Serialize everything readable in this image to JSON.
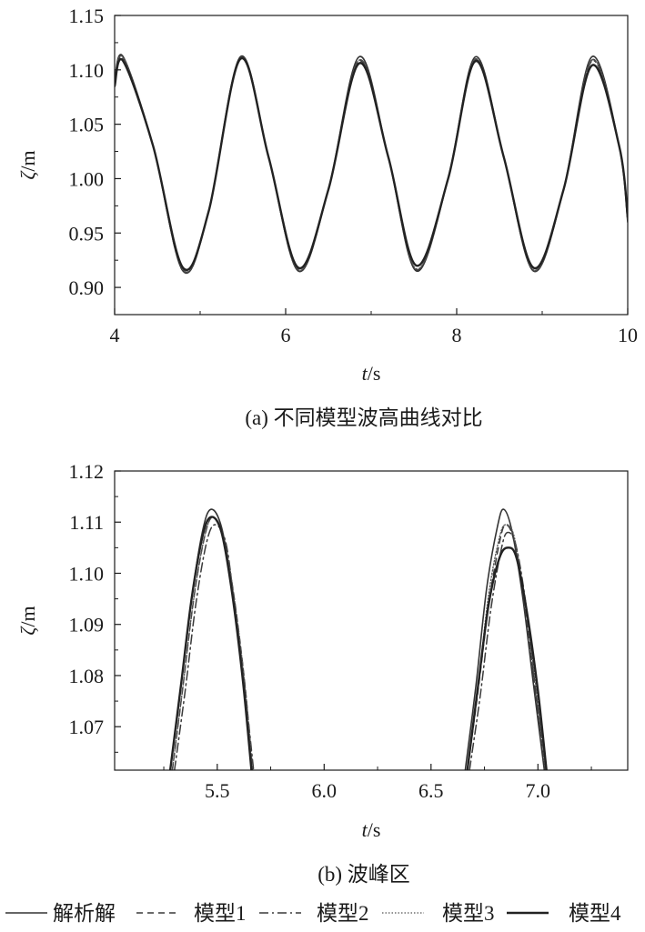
{
  "chart_data": [
    {
      "type": "line",
      "caption": "(a) 不同模型波高曲线对比",
      "xlabel_var": "t",
      "xlabel_unit": "/s",
      "ylabel_var": "ζ",
      "ylabel_unit": "/m",
      "xlim": [
        4,
        10
      ],
      "ylim": [
        0.875,
        1.15
      ],
      "xticks": [
        4,
        6,
        8,
        10
      ],
      "xtick_labels": [
        "4",
        "6",
        "8",
        "10"
      ],
      "yticks": [
        0.9,
        0.95,
        1.0,
        1.05,
        1.1,
        1.15
      ],
      "ytick_labels": [
        "0.90",
        "0.95",
        "1.00",
        "1.05",
        "1.10",
        "1.15"
      ],
      "grid": false,
      "series": [
        {
          "name": "解析解",
          "style": "solid",
          "x": [
            4.0,
            4.1,
            4.45,
            4.8,
            5.1,
            5.47,
            5.8,
            6.15,
            6.5,
            6.86,
            7.2,
            7.53,
            7.9,
            8.22,
            8.55,
            8.9,
            9.25,
            9.58,
            9.9,
            10.0
          ],
          "y": [
            1.09,
            1.112,
            1.03,
            0.915,
            0.97,
            1.112,
            1.02,
            0.915,
            0.99,
            1.112,
            1.02,
            0.915,
            1.0,
            1.112,
            1.02,
            0.915,
            0.99,
            1.112,
            1.03,
            0.96
          ]
        },
        {
          "name": "模型1",
          "style": "dash",
          "x": [
            4.0,
            4.1,
            4.45,
            4.8,
            5.1,
            5.47,
            5.8,
            6.15,
            6.5,
            6.86,
            7.2,
            7.53,
            7.9,
            8.22,
            8.55,
            8.9,
            9.25,
            9.58,
            9.9,
            10.0
          ],
          "y": [
            1.088,
            1.111,
            1.03,
            0.916,
            0.97,
            1.111,
            1.02,
            0.916,
            0.99,
            1.109,
            1.02,
            0.916,
            1.0,
            1.11,
            1.02,
            0.916,
            0.99,
            1.109,
            1.03,
            0.962
          ]
        },
        {
          "name": "模型2",
          "style": "dashdot",
          "x": [
            4.0,
            4.1,
            4.45,
            4.8,
            5.1,
            5.47,
            5.8,
            6.15,
            6.5,
            6.86,
            7.2,
            7.53,
            7.9,
            8.22,
            8.55,
            8.9,
            9.25,
            9.58,
            9.9,
            10.0
          ],
          "y": [
            1.087,
            1.11,
            1.03,
            0.915,
            0.97,
            1.11,
            1.02,
            0.915,
            0.99,
            1.108,
            1.02,
            0.916,
            1.0,
            1.109,
            1.02,
            0.915,
            0.99,
            1.108,
            1.03,
            0.962
          ]
        },
        {
          "name": "模型3",
          "style": "dot",
          "x": [
            4.0,
            4.1,
            4.45,
            4.8,
            5.1,
            5.47,
            5.8,
            6.15,
            6.5,
            6.86,
            7.2,
            7.53,
            7.9,
            8.22,
            8.55,
            8.9,
            9.25,
            9.58,
            9.9,
            10.0
          ],
          "y": [
            1.088,
            1.111,
            1.03,
            0.916,
            0.97,
            1.111,
            1.02,
            0.916,
            0.99,
            1.109,
            1.02,
            0.917,
            1.0,
            1.11,
            1.02,
            0.916,
            0.99,
            1.109,
            1.03,
            0.962
          ]
        },
        {
          "name": "模型4",
          "style": "solid-thick",
          "x": [
            4.0,
            4.1,
            4.45,
            4.8,
            5.1,
            5.47,
            5.8,
            6.15,
            6.5,
            6.86,
            7.2,
            7.53,
            7.9,
            8.22,
            8.55,
            8.9,
            9.25,
            9.58,
            9.9,
            10.0
          ],
          "y": [
            1.085,
            1.108,
            1.03,
            0.918,
            0.97,
            1.11,
            1.02,
            0.918,
            0.99,
            1.106,
            1.02,
            0.92,
            1.0,
            1.108,
            1.02,
            0.918,
            0.99,
            1.104,
            1.03,
            0.965
          ]
        }
      ]
    },
    {
      "type": "line",
      "caption": "(b) 波峰区",
      "xlabel_var": "t",
      "xlabel_unit": "/s",
      "ylabel_var": "ζ",
      "ylabel_unit": "/m",
      "xlim": [
        5.02,
        7.42
      ],
      "ylim": [
        1.0615,
        1.12
      ],
      "xticks": [
        5.5,
        6.0,
        6.5,
        7.0
      ],
      "xtick_labels": [
        "5.5",
        "6.0",
        "6.5",
        "7.0"
      ],
      "yticks": [
        1.07,
        1.08,
        1.09,
        1.1,
        1.11,
        1.12
      ],
      "ytick_labels": [
        "1.07",
        "1.08",
        "1.09",
        "1.10",
        "1.11",
        "1.12"
      ],
      "grid": false,
      "series": [
        {
          "name": "解析解",
          "style": "solid",
          "x": [
            5.28,
            5.33,
            5.38,
            5.43,
            5.47,
            5.52,
            5.57,
            5.62,
            5.66,
            6.66,
            6.71,
            6.76,
            6.81,
            6.84,
            6.88,
            6.93,
            6.98,
            7.03
          ],
          "y": [
            1.0615,
            1.078,
            1.095,
            1.108,
            1.1125,
            1.109,
            1.097,
            1.08,
            1.0615,
            1.0615,
            1.078,
            1.097,
            1.109,
            1.1125,
            1.108,
            1.095,
            1.078,
            1.0615
          ]
        },
        {
          "name": "模型1",
          "style": "dash",
          "x": [
            5.29,
            5.34,
            5.39,
            5.44,
            5.48,
            5.53,
            5.58,
            5.63,
            5.665,
            6.67,
            6.72,
            6.77,
            6.82,
            6.85,
            6.89,
            6.94,
            6.99,
            7.035
          ],
          "y": [
            1.0615,
            1.078,
            1.095,
            1.107,
            1.111,
            1.107,
            1.095,
            1.078,
            1.0615,
            1.0615,
            1.077,
            1.094,
            1.106,
            1.1095,
            1.106,
            1.093,
            1.077,
            1.0615
          ]
        },
        {
          "name": "模型2",
          "style": "dashdot",
          "x": [
            5.3,
            5.35,
            5.4,
            5.45,
            5.49,
            5.54,
            5.58,
            5.63,
            5.67,
            6.68,
            6.73,
            6.78,
            6.83,
            6.86,
            6.9,
            6.95,
            6.99,
            7.04
          ],
          "y": [
            1.0615,
            1.077,
            1.094,
            1.106,
            1.1095,
            1.106,
            1.094,
            1.077,
            1.0615,
            1.0615,
            1.076,
            1.093,
            1.105,
            1.108,
            1.105,
            1.092,
            1.076,
            1.0615
          ]
        },
        {
          "name": "模型3",
          "style": "dot",
          "x": [
            5.29,
            5.34,
            5.39,
            5.44,
            5.48,
            5.53,
            5.58,
            5.63,
            5.665,
            6.67,
            6.72,
            6.77,
            6.82,
            6.85,
            6.89,
            6.94,
            6.99,
            7.035
          ],
          "y": [
            1.0615,
            1.078,
            1.095,
            1.107,
            1.111,
            1.107,
            1.095,
            1.078,
            1.0615,
            1.0615,
            1.078,
            1.096,
            1.107,
            1.1095,
            1.107,
            1.094,
            1.078,
            1.0615
          ]
        },
        {
          "name": "模型4",
          "style": "solid-thick",
          "x": [
            5.28,
            5.33,
            5.38,
            5.43,
            5.47,
            5.52,
            5.57,
            5.62,
            5.66,
            6.67,
            6.72,
            6.77,
            6.82,
            6.86,
            6.9,
            6.95,
            7.0,
            7.04
          ],
          "y": [
            1.0615,
            1.078,
            1.095,
            1.107,
            1.111,
            1.108,
            1.096,
            1.079,
            1.0615,
            1.0615,
            1.078,
            1.094,
            1.103,
            1.105,
            1.103,
            1.092,
            1.077,
            1.0615
          ]
        }
      ]
    }
  ],
  "legend": {
    "items": [
      "解析解",
      "模型1",
      "模型2",
      "模型3",
      "模型4"
    ]
  }
}
